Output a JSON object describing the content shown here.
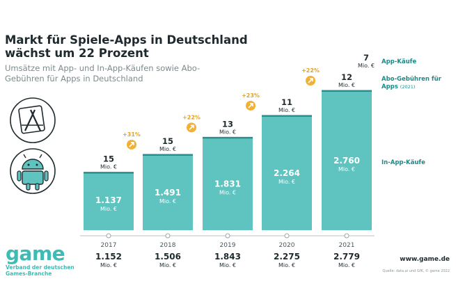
{
  "title": "Markt für Spiele-Apps in Deutschland wächst um 22 Prozent",
  "subtitle": "Umsätze mit App- und In-App-Käufen sowie Abo-Gebühren für Apps in Deutschland",
  "legend": {
    "app_purchases": "App-Käufe",
    "subscriptions": "Abo-Gebühren für Apps",
    "subscriptions_note": "(2021)",
    "in_app": "In-App-Käufe"
  },
  "unit": "Mio. €",
  "branding": {
    "logo": "game",
    "tagline": "Verband der deutschen Games-Branche",
    "website": "www.game.de",
    "source": "Quelle: data.ai und GfK, © game 2022"
  },
  "icons": [
    "app-store-icon",
    "android-icon"
  ],
  "colors": {
    "bar": "#5fc3c0",
    "bar_dark": "#2a8f8c",
    "growth_badge": "#f2b134",
    "text": "#1f2a2e",
    "accent": "#1c8a88"
  },
  "chart_data": {
    "type": "bar",
    "categories": [
      "2017",
      "2018",
      "2019",
      "2020",
      "2021"
    ],
    "series": [
      {
        "name": "In-App-Käufe",
        "values": [
          1137,
          1491,
          1831,
          2264,
          2760
        ],
        "labels": [
          "1.137",
          "1.491",
          "1.831",
          "2.264",
          "2.760"
        ]
      },
      {
        "name": "App-Käufe",
        "values": [
          15,
          15,
          13,
          11,
          12
        ],
        "labels": [
          "15",
          "15",
          "13",
          "11",
          "12"
        ]
      },
      {
        "name": "Abo-Gebühren für Apps",
        "values": [
          null,
          null,
          null,
          null,
          7
        ],
        "labels": [
          "",
          "",
          "",
          "",
          "7"
        ]
      }
    ],
    "totals": [
      1152,
      1506,
      1843,
      2275,
      2779
    ],
    "total_labels": [
      "1.152",
      "1.506",
      "1.843",
      "2.275",
      "2.779"
    ],
    "growth": [
      "",
      "+31%",
      "+22%",
      "+23%",
      "+22%"
    ],
    "unit": "Mio. €"
  }
}
